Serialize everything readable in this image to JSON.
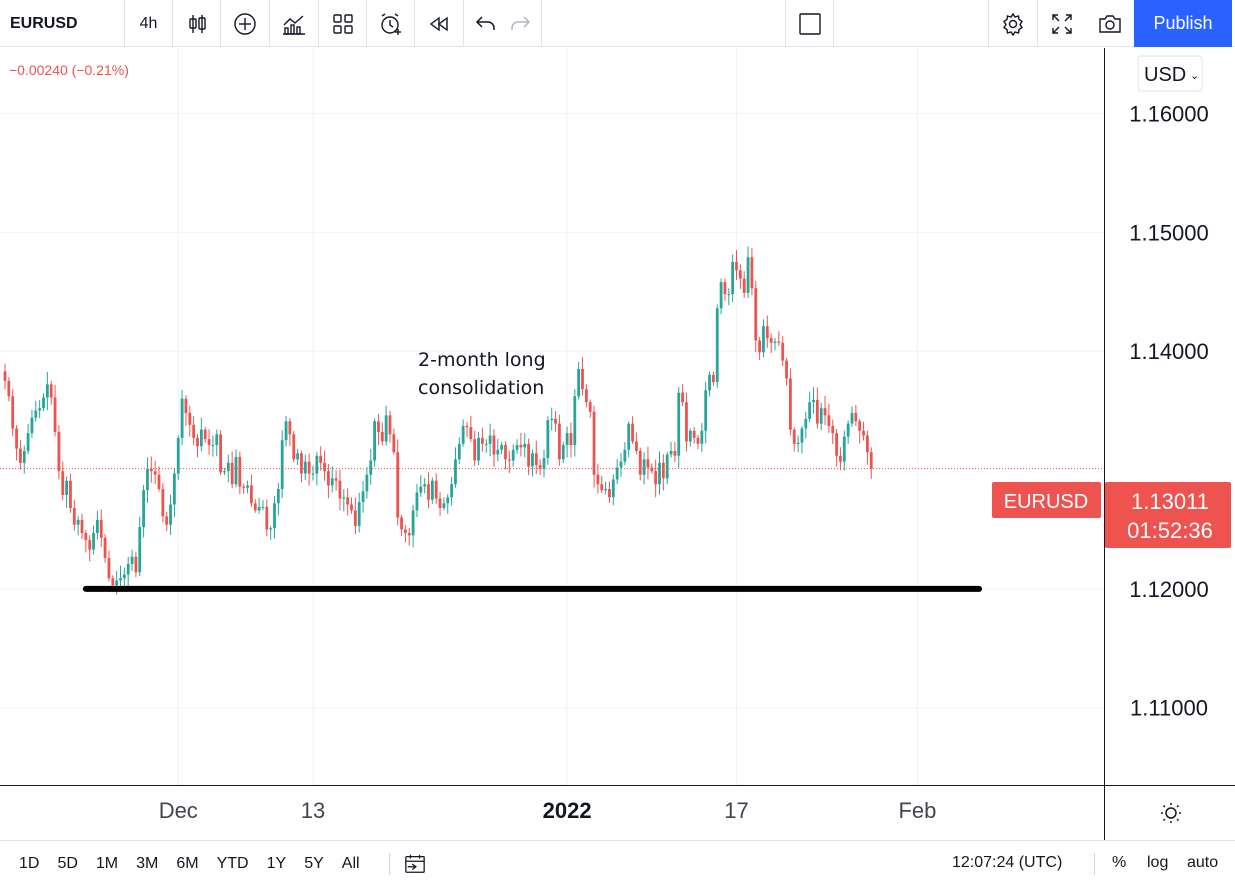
{
  "toolbar": {
    "symbol": "EURUSD",
    "interval": "4h",
    "publish_label": "Publish",
    "icons": [
      "candles-icon",
      "plus-circle-icon",
      "indicators-icon",
      "layout-icon",
      "alert-icon",
      "replay-icon",
      "undo-icon",
      "redo-icon",
      "rectangle-icon",
      "gear-icon",
      "fullscreen-icon",
      "camera-icon"
    ]
  },
  "legend": {
    "change": "−0.00240 (−0.21%)"
  },
  "currency_label": "USD",
  "annotation": [
    "2-month long",
    "consolidation"
  ],
  "price_label": {
    "symbol": "EURUSD",
    "price": "1.13011",
    "countdown": "01:52:36"
  },
  "colors": {
    "up": "#26a69a",
    "down": "#ef5350",
    "accent": "#2962ff",
    "grid": "#f0f3fa",
    "support": "#000000"
  },
  "chart_data": {
    "type": "candlestick",
    "symbol": "EURUSD",
    "interval": "4h",
    "ylim": [
      1.1035,
      1.1655
    ],
    "yticks": [
      1.16,
      1.15,
      1.14,
      1.12,
      1.11
    ],
    "ytick_labels": [
      "1.16000",
      "1.15000",
      "1.14000",
      "1.12000",
      "1.11000"
    ],
    "xticks": [
      {
        "label": "Dec",
        "bar": 45,
        "bold": false
      },
      {
        "label": "13",
        "bar": 80,
        "bold": false
      },
      {
        "label": "2022",
        "bar": 146,
        "bold": true
      },
      {
        "label": "17",
        "bar": 190,
        "bold": false
      },
      {
        "label": "Feb",
        "bar": 237,
        "bold": false
      }
    ],
    "last_price": 1.13011,
    "support_line": {
      "price": 1.12,
      "from_bar": 21,
      "to_bar": 253
    },
    "close": [
      1.1375,
      1.1362,
      1.1335,
      1.1318,
      1.1306,
      1.1316,
      1.1331,
      1.1344,
      1.135,
      1.1352,
      1.1361,
      1.1372,
      1.1361,
      1.1332,
      1.1299,
      1.1279,
      1.1291,
      1.1268,
      1.1254,
      1.1258,
      1.1247,
      1.1241,
      1.1233,
      1.1247,
      1.1258,
      1.1243,
      1.1226,
      1.1209,
      1.1203,
      1.1207,
      1.1209,
      1.1212,
      1.1221,
      1.1227,
      1.1214,
      1.1252,
      1.1283,
      1.1301,
      1.1299,
      1.1296,
      1.1284,
      1.1261,
      1.1254,
      1.1271,
      1.1297,
      1.1327,
      1.136,
      1.1348,
      1.1338,
      1.1327,
      1.132,
      1.1334,
      1.1326,
      1.1321,
      1.1321,
      1.133,
      1.1298,
      1.1299,
      1.1306,
      1.1288,
      1.1311,
      1.1286,
      1.1285,
      1.1287,
      1.1272,
      1.1266,
      1.1269,
      1.1269,
      1.125,
      1.1251,
      1.1272,
      1.1284,
      1.1325,
      1.1341,
      1.133,
      1.1309,
      1.1314,
      1.1297,
      1.1307,
      1.1297,
      1.1297,
      1.1312,
      1.1306,
      1.1299,
      1.1287,
      1.1293,
      1.1291,
      1.1276,
      1.1277,
      1.1271,
      1.1266,
      1.1253,
      1.1273,
      1.1282,
      1.1296,
      1.1308,
      1.1341,
      1.1332,
      1.1324,
      1.1346,
      1.133,
      1.1315,
      1.126,
      1.125,
      1.1247,
      1.1245,
      1.1266,
      1.1281,
      1.1286,
      1.1288,
      1.1275,
      1.1291,
      1.1276,
      1.1268,
      1.1272,
      1.1277,
      1.1288,
      1.1309,
      1.1322,
      1.1337,
      1.1336,
      1.1326,
      1.1308,
      1.1327,
      1.1322,
      1.1322,
      1.1329,
      1.1313,
      1.1317,
      1.1321,
      1.1309,
      1.1308,
      1.1317,
      1.1321,
      1.1319,
      1.1322,
      1.1303,
      1.1314,
      1.1304,
      1.1301,
      1.131,
      1.1342,
      1.1343,
      1.1339,
      1.1309,
      1.1321,
      1.1331,
      1.1321,
      1.1362,
      1.1385,
      1.1368,
      1.1357,
      1.1349,
      1.1296,
      1.1288,
      1.1283,
      1.1284,
      1.1277,
      1.1292,
      1.1302,
      1.1307,
      1.1317,
      1.1339,
      1.1324,
      1.1316,
      1.1296,
      1.1309,
      1.1302,
      1.1299,
      1.1288,
      1.1306,
      1.1293,
      1.1313,
      1.1316,
      1.1312,
      1.1365,
      1.1357,
      1.1324,
      1.1333,
      1.1327,
      1.1322,
      1.1333,
      1.1367,
      1.138,
      1.1374,
      1.1436,
      1.1458,
      1.1448,
      1.1448,
      1.1475,
      1.1468,
      1.1461,
      1.1449,
      1.1479,
      1.1453,
      1.1409,
      1.1399,
      1.1421,
      1.1411,
      1.1407,
      1.1408,
      1.1407,
      1.1392,
      1.1377,
      1.1334,
      1.1322,
      1.1323,
      1.1335,
      1.1343,
      1.1357,
      1.1359,
      1.1339,
      1.1352,
      1.1346,
      1.1337,
      1.1331,
      1.1312,
      1.1307,
      1.1328,
      1.1339,
      1.1348,
      1.1341,
      1.1333,
      1.1329,
      1.1315,
      1.1301
    ]
  }
}
